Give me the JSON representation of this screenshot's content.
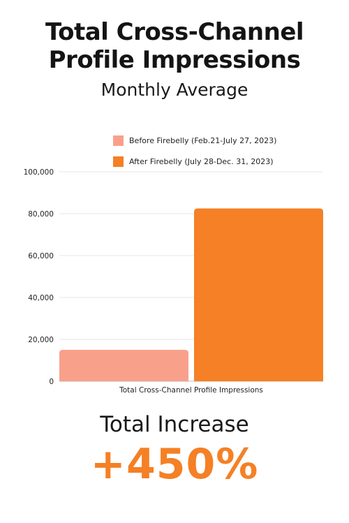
{
  "header": {
    "title_line1": "Total Cross-Channel",
    "title_line2": "Profile Impressions",
    "subtitle": "Monthly Average"
  },
  "chart_data": {
    "type": "bar",
    "categories": [
      "Total Cross-Channel Profile Impressions"
    ],
    "series": [
      {
        "name": "Before Firebelly (Feb.21-July 27, 2023)",
        "values": [
          15000
        ],
        "color": "#f9a08a"
      },
      {
        "name": "After Firebelly (July 28-Dec. 31, 2023)",
        "values": [
          82500
        ],
        "color": "#f58025"
      }
    ],
    "title": "",
    "xlabel": "",
    "ylabel": "",
    "ylim": [
      0,
      100000
    ],
    "yticks": [
      0,
      20000,
      40000,
      60000,
      80000,
      100000
    ],
    "ytick_labels": [
      "0",
      "20,000",
      "40,000",
      "60,000",
      "80,000",
      "100,000"
    ],
    "grid": true,
    "legend_position": "top"
  },
  "summary": {
    "label": "Total Increase",
    "value": "+450%",
    "accent_color": "#f58025"
  }
}
